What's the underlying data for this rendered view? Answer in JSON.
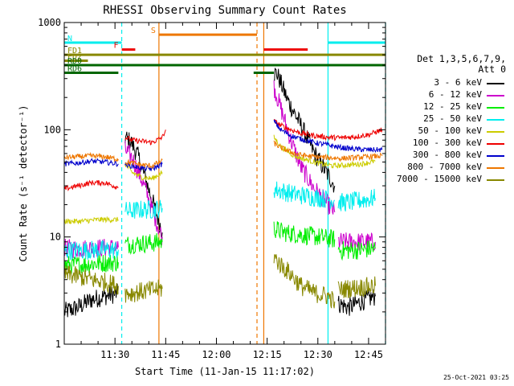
{
  "chart_data": {
    "type": "line",
    "title": "RHESSI Observing Summary Count Rates",
    "xlabel": "Start Time (11-Jan-15 11:17:02)",
    "ylabel": "Count Rate (s⁻¹ detector⁻¹)",
    "y_scale": "log",
    "ylim": [
      1,
      1000
    ],
    "xlim_minutes": [
      0,
      95
    ],
    "x_ticks": [
      {
        "t": 15,
        "label": "11:30"
      },
      {
        "t": 30,
        "label": "11:45"
      },
      {
        "t": 45,
        "label": "12:00"
      },
      {
        "t": 60,
        "label": "12:15"
      },
      {
        "t": 75,
        "label": "12:30"
      },
      {
        "t": 90,
        "label": "12:45"
      }
    ],
    "y_ticks": [
      {
        "v": 1,
        "label": "1"
      },
      {
        "v": 10,
        "label": "10"
      },
      {
        "v": 100,
        "label": "100"
      },
      {
        "v": 1000,
        "label": "1000"
      }
    ],
    "legend_title": [
      "Det 1,3,5,6,7,9,",
      "Att 0"
    ],
    "series": [
      {
        "name": "3 - 6 keV",
        "color": "#000000",
        "segments": [
          {
            "t": [
              0,
              4,
              8,
              12,
              16
            ],
            "v": [
              2.0,
              2.2,
              2.6,
              2.8,
              3.0
            ]
          },
          {
            "t": [
              18,
              20,
              22,
              24,
              26,
              28,
              29
            ],
            "v": [
              85,
              75,
              55,
              35,
              22,
              14,
              11
            ]
          },
          {
            "t": [
              62,
              63,
              66,
              70,
              74,
              78,
              80
            ],
            "v": [
              340,
              330,
              190,
              110,
              60,
              38,
              30
            ]
          },
          {
            "t": [
              81,
              84,
              88,
              92
            ],
            "v": [
              2.4,
              2.2,
              2.5,
              2.8
            ]
          }
        ]
      },
      {
        "name": "6 - 12 keV",
        "color": "#cc00cc",
        "segments": [
          {
            "t": [
              0,
              5,
              10,
              16
            ],
            "v": [
              7.8,
              7.8,
              7.9,
              8.0
            ]
          },
          {
            "t": [
              18,
              20,
              22,
              24,
              26,
              28,
              29
            ],
            "v": [
              65,
              55,
              40,
              28,
              18,
              12,
              10
            ]
          },
          {
            "t": [
              62,
              64,
              67,
              70,
              74,
              78,
              80
            ],
            "v": [
              250,
              160,
              80,
              45,
              28,
              20,
              17
            ]
          },
          {
            "t": [
              81,
              85,
              88,
              92
            ],
            "v": [
              9,
              9,
              9,
              9
            ]
          }
        ]
      },
      {
        "name": "12 - 25 keV",
        "color": "#00ee00",
        "segments": [
          {
            "t": [
              0,
              5,
              10,
              16
            ],
            "v": [
              5.5,
              5.5,
              5.7,
              5.8
            ]
          },
          {
            "t": [
              18,
              20,
              23,
              26,
              29
            ],
            "v": [
              8.5,
              8.6,
              8.7,
              8.8,
              9.0
            ]
          },
          {
            "t": [
              62,
              65,
              70,
              75,
              80
            ],
            "v": [
              12,
              11,
              10.5,
              10,
              9.5
            ]
          },
          {
            "t": [
              81,
              85,
              88,
              92
            ],
            "v": [
              7.5,
              7.5,
              7.6,
              7.8
            ]
          }
        ]
      },
      {
        "name": "25 - 50 keV",
        "color": "#00eeee",
        "segments": [
          {
            "t": [
              0,
              5,
              10,
              16
            ],
            "v": [
              7.5,
              7.5,
              7.6,
              7.6
            ]
          },
          {
            "t": [
              18,
              20,
              23,
              26,
              29
            ],
            "v": [
              17.5,
              17.5,
              18,
              18,
              18.5
            ]
          },
          {
            "t": [
              62,
              64,
              68,
              72,
              76,
              80
            ],
            "v": [
              28,
              27,
              25,
              24,
              23,
              22
            ]
          },
          {
            "t": [
              81,
              84,
              88,
              92
            ],
            "v": [
              21,
              21,
              22,
              23
            ]
          }
        ]
      },
      {
        "name": "50 - 100 keV",
        "color": "#cccc00",
        "segments": [
          {
            "t": [
              0,
              5,
              10,
              16
            ],
            "v": [
              14,
              14,
              14.5,
              14.5
            ]
          },
          {
            "t": [
              18,
              20,
              23,
              26,
              29
            ],
            "v": [
              48,
              40,
              36,
              35,
              40
            ]
          },
          {
            "t": [
              62,
              64,
              68,
              72,
              76,
              80,
              84,
              88,
              92
            ],
            "v": [
              85,
              70,
              57,
              52,
              48,
              46,
              47,
              48,
              51
            ]
          }
        ]
      },
      {
        "name": "100 - 300 keV",
        "color": "#ee0000",
        "segments": [
          {
            "t": [
              0,
              4,
              8,
              12,
              16
            ],
            "v": [
              28,
              30,
              32,
              32,
              29
            ]
          },
          {
            "t": [
              18,
              20,
              23,
              26,
              29,
              30
            ],
            "v": [
              85,
              80,
              78,
              76,
              85,
              100
            ]
          },
          {
            "t": [
              62,
              64,
              67,
              70,
              74,
              78,
              82,
              86,
              90,
              94
            ],
            "v": [
              120,
              110,
              100,
              93,
              88,
              85,
              84,
              86,
              90,
              100
            ]
          }
        ]
      },
      {
        "name": "300 - 800 keV",
        "color": "#0000cc",
        "segments": [
          {
            "t": [
              0,
              4,
              8,
              12,
              16
            ],
            "v": [
              48,
              49,
              51,
              50,
              48
            ]
          },
          {
            "t": [
              18,
              20,
              23,
              26,
              29
            ],
            "v": [
              47,
              46,
              44,
              43,
              48
            ]
          },
          {
            "t": [
              62,
              64,
              67,
              70,
              74,
              78,
              82,
              86,
              90,
              94
            ],
            "v": [
              120,
              100,
              88,
              82,
              76,
              72,
              68,
              66,
              65,
              65
            ]
          }
        ]
      },
      {
        "name": "800 - 7000 keV",
        "color": "#ee7700",
        "segments": [
          {
            "t": [
              0,
              4,
              8,
              12,
              16
            ],
            "v": [
              55,
              56,
              57,
              56,
              53
            ]
          },
          {
            "t": [
              18,
              20,
              23,
              26,
              29
            ],
            "v": [
              50,
              49,
              47,
              46,
              52
            ]
          },
          {
            "t": [
              62,
              64,
              67,
              70,
              74,
              78,
              82,
              86,
              90,
              94
            ],
            "v": [
              75,
              68,
              62,
              58,
              56,
              55,
              54,
              55,
              56,
              57
            ]
          }
        ]
      },
      {
        "name": "7000 - 15000 keV",
        "color": "#888800",
        "segments": [
          {
            "t": [
              0,
              4,
              8,
              12,
              16
            ],
            "v": [
              4.5,
              4.3,
              4.0,
              3.8,
              3.5
            ]
          },
          {
            "t": [
              18,
              20,
              23,
              26,
              29
            ],
            "v": [
              3.0,
              3.0,
              3.1,
              3.2,
              3.3
            ]
          },
          {
            "t": [
              62,
              64,
              67,
              70,
              74,
              78,
              80
            ],
            "v": [
              6.5,
              5.5,
              4.5,
              3.5,
              3.0,
              2.8,
              2.5
            ]
          },
          {
            "t": [
              81,
              84,
              88,
              92
            ],
            "v": [
              3.2,
              3.3,
              3.4,
              3.5
            ]
          }
        ]
      }
    ],
    "flag_bars": [
      {
        "label": "N",
        "color": "#00eeee",
        "label_color": "#00eeee",
        "label_pos": "right",
        "segments": [
          [
            0,
            17
          ],
          [
            78,
            95
          ]
        ],
        "level": 650
      },
      {
        "label": "S",
        "color": "#ee7700",
        "label_color": "#ee7700",
        "label_pos": "left",
        "segments": [
          [
            28,
            57
          ]
        ],
        "level": 770
      },
      {
        "label": "F",
        "color": "#ee0000",
        "label_color": "#ee0000",
        "label_pos": "left",
        "segments": [
          [
            17,
            21
          ],
          [
            59,
            72
          ]
        ],
        "level": 560
      },
      {
        "label": "FD1",
        "color": "#888800",
        "label_color": "#888800",
        "label_pos": "right",
        "segments": [
          [
            0,
            95
          ]
        ],
        "level": 500
      },
      {
        "label": "FD2",
        "color": "#888800",
        "label_color": "#888800",
        "label_pos": "right",
        "segments": [
          [
            0,
            7
          ]
        ],
        "level": 440
      },
      {
        "label": "RD0",
        "color": "#006600",
        "label_color": "#006600",
        "label_pos": "right",
        "segments": [
          [
            0,
            95
          ]
        ],
        "level": 400
      },
      {
        "label": "RD6",
        "color": "#006600",
        "label_color": "#006600",
        "label_pos": "right",
        "segments": [
          [
            0,
            16
          ],
          [
            56,
            62
          ]
        ],
        "level": 340
      }
    ],
    "vertical_lines": [
      {
        "t": 17,
        "color": "#00eeee",
        "style": "dashed"
      },
      {
        "t": 28,
        "color": "#ee7700",
        "style": "solid"
      },
      {
        "t": 57,
        "color": "#ee7700",
        "style": "dashed"
      },
      {
        "t": 59,
        "color": "#ee7700",
        "style": "solid"
      },
      {
        "t": 78,
        "color": "#00eeee",
        "style": "solid"
      },
      {
        "t": 95,
        "color": "#00eeee",
        "style": "dashed"
      }
    ]
  },
  "footer": "25-Oct-2021 03:25"
}
